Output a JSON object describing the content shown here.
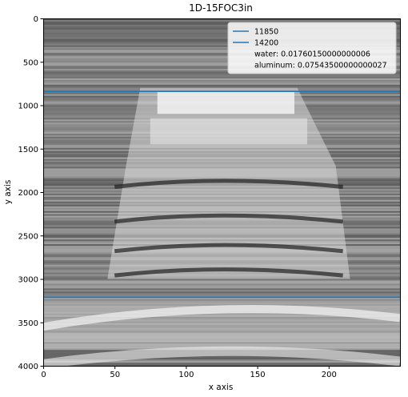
{
  "chart_data": {
    "type": "heatmap",
    "title": "1D-15FOC3in",
    "xlabel": "x axis",
    "ylabel": "y axis",
    "xlim": [
      0,
      250
    ],
    "ylim": [
      4000,
      0
    ],
    "y_inverted": true,
    "colormap": "grayscale",
    "xticks": [
      0,
      50,
      100,
      150,
      200
    ],
    "yticks": [
      0,
      500,
      1000,
      1500,
      2000,
      2500,
      3000,
      3500,
      4000
    ],
    "series": [
      {
        "name": "11850",
        "type": "hline",
        "y": 840,
        "color": "#1f77b4"
      },
      {
        "name": "14200",
        "type": "hline",
        "y": 3210,
        "color": "#1f77b4"
      }
    ],
    "legend": {
      "placement": "top-right",
      "entries": [
        {
          "label": "11850",
          "marker": "line",
          "color": "#1f77b4"
        },
        {
          "label": "14200",
          "marker": "line",
          "color": "#1f77b4"
        },
        {
          "label": "water: 0.01760150000000006",
          "marker": "none"
        },
        {
          "label": "aluminum: 0.07543500000000027",
          "marker": "none"
        }
      ]
    },
    "grid": false
  }
}
